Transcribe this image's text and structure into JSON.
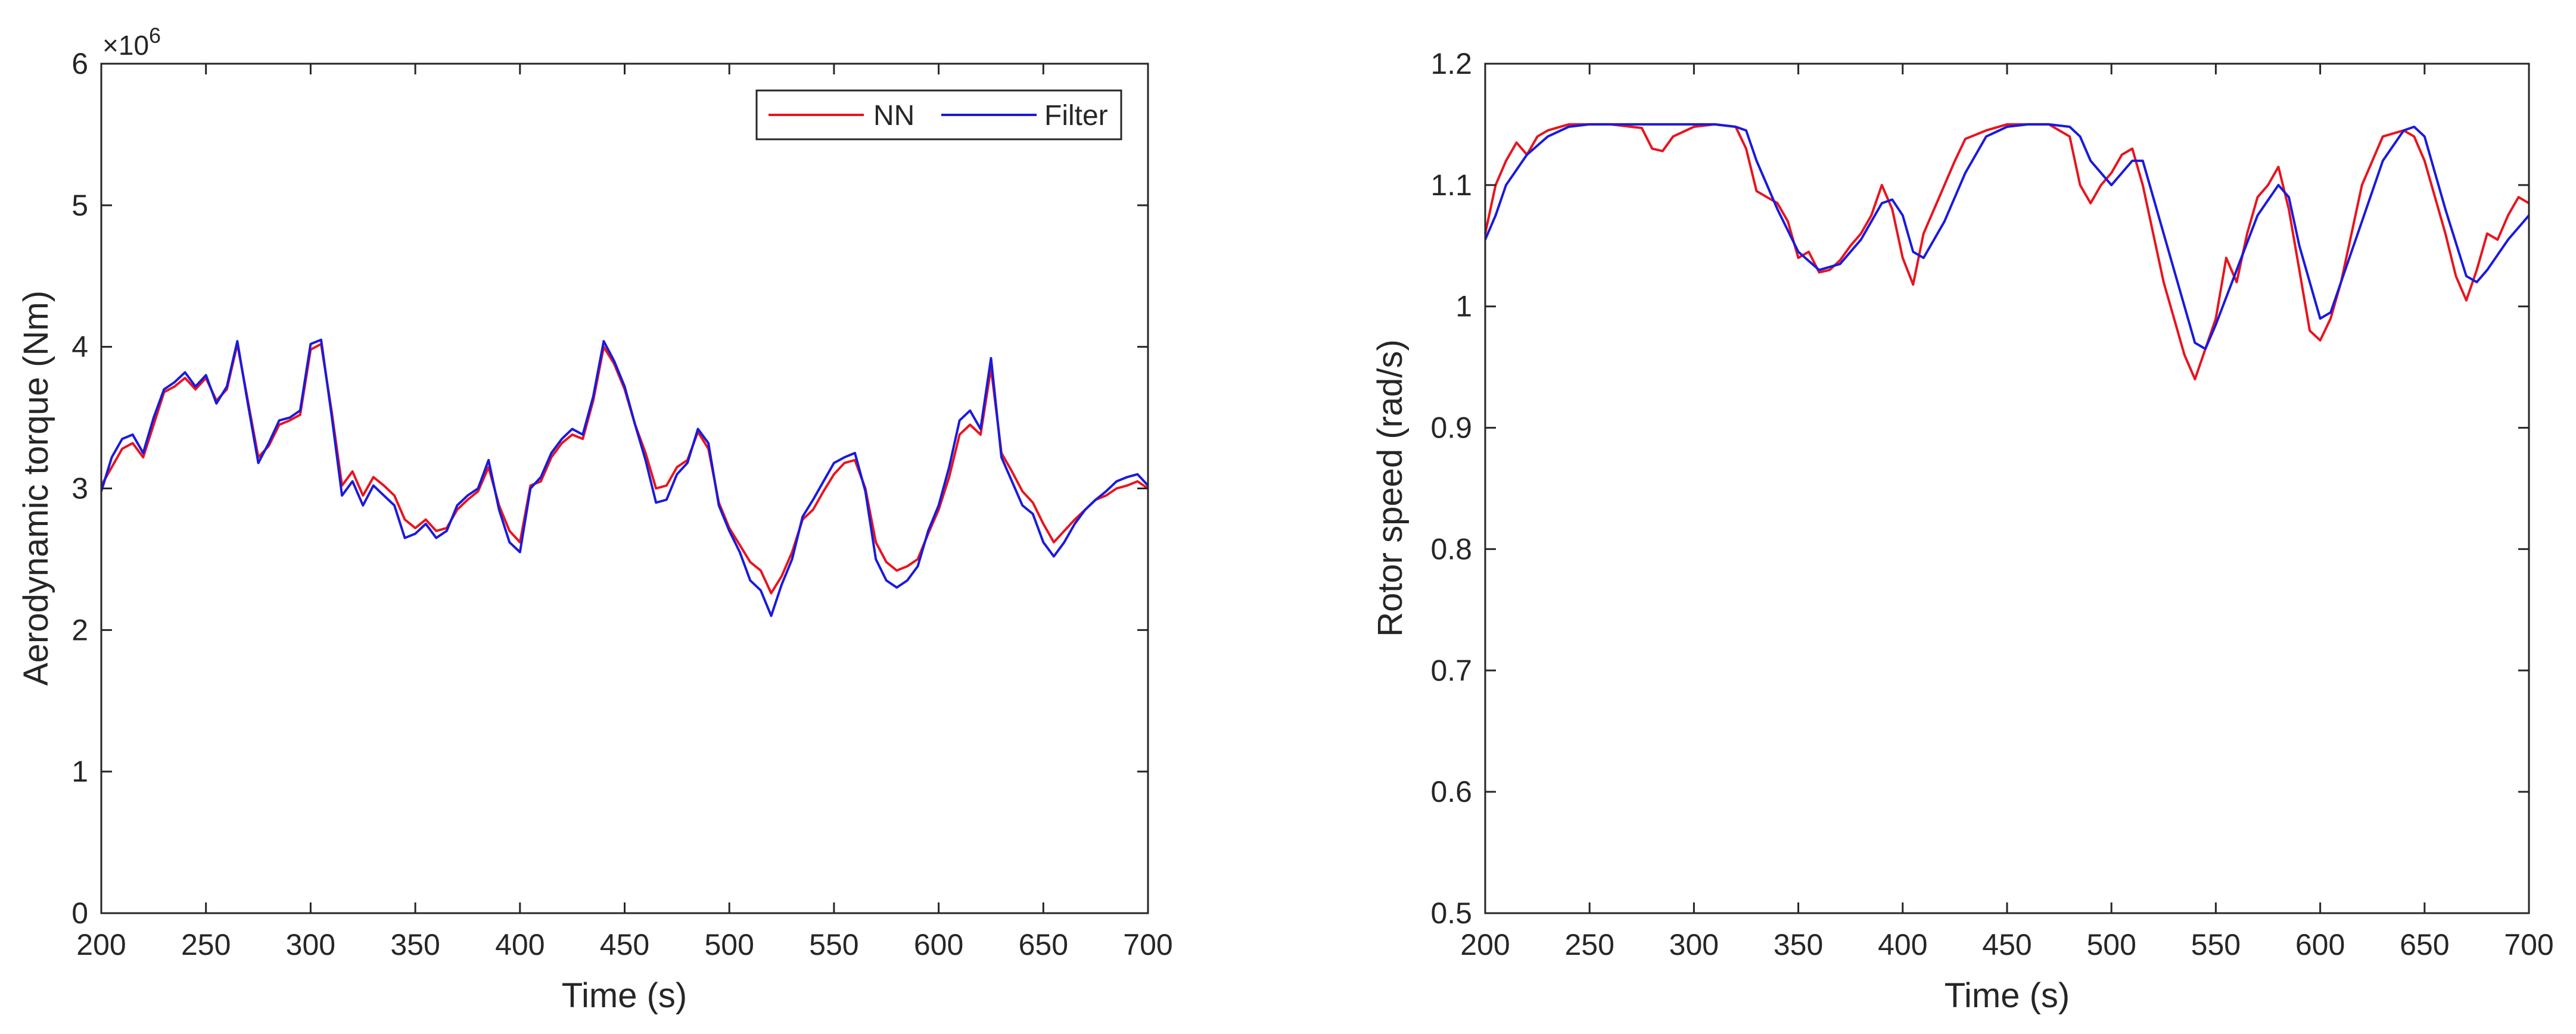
{
  "chart_data": [
    {
      "type": "line",
      "xlabel": "Time (s)",
      "ylabel": "Aerodynamic torque (Nm)",
      "xlim": [
        200,
        700
      ],
      "ylim": [
        0,
        6000000
      ],
      "xticks": [
        200,
        250,
        300,
        350,
        400,
        450,
        500,
        550,
        600,
        650,
        700
      ],
      "yticks": [
        0,
        1,
        2,
        3,
        4,
        5,
        6
      ],
      "ytick_labels": [
        "0",
        "1",
        "2",
        "3",
        "4",
        "5",
        "6"
      ],
      "yexponent": {
        "base": "×10",
        "power": "6"
      },
      "legend": {
        "position": "top-right",
        "entries": [
          "NN",
          "Filter"
        ]
      },
      "series": [
        {
          "name": "NN",
          "color": "#e8141e",
          "x": [
            200,
            205,
            210,
            215,
            220,
            225,
            230,
            235,
            240,
            245,
            250,
            255,
            260,
            265,
            270,
            275,
            280,
            285,
            290,
            295,
            300,
            305,
            310,
            315,
            320,
            325,
            330,
            335,
            340,
            345,
            350,
            355,
            360,
            365,
            370,
            375,
            380,
            385,
            390,
            395,
            400,
            405,
            410,
            415,
            420,
            425,
            430,
            435,
            440,
            445,
            450,
            455,
            460,
            465,
            470,
            475,
            480,
            485,
            490,
            495,
            500,
            505,
            510,
            515,
            520,
            525,
            530,
            535,
            540,
            545,
            550,
            555,
            560,
            565,
            570,
            575,
            580,
            585,
            590,
            595,
            600,
            605,
            610,
            615,
            620,
            625,
            630,
            635,
            640,
            645,
            650,
            655,
            660,
            665,
            670,
            675,
            680,
            685,
            690,
            695,
            700
          ],
          "y": [
            3.02,
            3.15,
            3.28,
            3.32,
            3.22,
            3.45,
            3.68,
            3.72,
            3.78,
            3.7,
            3.78,
            3.62,
            3.7,
            4.02,
            3.62,
            3.22,
            3.3,
            3.45,
            3.48,
            3.52,
            3.98,
            4.02,
            3.55,
            3.02,
            3.12,
            2.95,
            3.08,
            3.02,
            2.95,
            2.78,
            2.72,
            2.78,
            2.7,
            2.72,
            2.85,
            2.92,
            2.98,
            3.15,
            2.88,
            2.7,
            2.62,
            3.02,
            3.05,
            3.22,
            3.32,
            3.38,
            3.35,
            3.62,
            4.0,
            3.88,
            3.7,
            3.45,
            3.25,
            3.0,
            3.02,
            3.15,
            3.2,
            3.4,
            3.28,
            2.9,
            2.72,
            2.6,
            2.48,
            2.42,
            2.26,
            2.38,
            2.55,
            2.78,
            2.85,
            2.98,
            3.1,
            3.18,
            3.2,
            3.0,
            2.62,
            2.48,
            2.42,
            2.45,
            2.5,
            2.68,
            2.85,
            3.08,
            3.38,
            3.45,
            3.38,
            3.85,
            3.25,
            3.12,
            2.98,
            2.9,
            2.75,
            2.62,
            2.7,
            2.78,
            2.85,
            2.92,
            2.95,
            3.0,
            3.02,
            3.05,
            3.0
          ]
        },
        {
          "name": "Filter",
          "color": "#1a1adc",
          "x": [
            200,
            205,
            210,
            215,
            220,
            225,
            230,
            235,
            240,
            245,
            250,
            255,
            260,
            265,
            270,
            275,
            280,
            285,
            290,
            295,
            300,
            305,
            310,
            315,
            320,
            325,
            330,
            335,
            340,
            345,
            350,
            355,
            360,
            365,
            370,
            375,
            380,
            385,
            390,
            395,
            400,
            405,
            410,
            415,
            420,
            425,
            430,
            435,
            440,
            445,
            450,
            455,
            460,
            465,
            470,
            475,
            480,
            485,
            490,
            495,
            500,
            505,
            510,
            515,
            520,
            525,
            530,
            535,
            540,
            545,
            550,
            555,
            560,
            565,
            570,
            575,
            580,
            585,
            590,
            595,
            600,
            605,
            610,
            615,
            620,
            625,
            630,
            635,
            640,
            645,
            650,
            655,
            660,
            665,
            670,
            675,
            680,
            685,
            690,
            695,
            700
          ],
          "y": [
            2.98,
            3.22,
            3.35,
            3.38,
            3.25,
            3.5,
            3.7,
            3.75,
            3.82,
            3.72,
            3.8,
            3.6,
            3.72,
            4.04,
            3.6,
            3.18,
            3.32,
            3.48,
            3.5,
            3.55,
            4.02,
            4.05,
            3.52,
            2.95,
            3.05,
            2.88,
            3.02,
            2.95,
            2.88,
            2.65,
            2.68,
            2.75,
            2.65,
            2.7,
            2.88,
            2.95,
            3.0,
            3.2,
            2.85,
            2.62,
            2.55,
            3.0,
            3.08,
            3.25,
            3.35,
            3.42,
            3.38,
            3.65,
            4.04,
            3.9,
            3.72,
            3.45,
            3.2,
            2.9,
            2.92,
            3.1,
            3.18,
            3.42,
            3.32,
            2.88,
            2.7,
            2.55,
            2.35,
            2.28,
            2.1,
            2.32,
            2.5,
            2.8,
            2.92,
            3.05,
            3.18,
            3.22,
            3.25,
            2.98,
            2.5,
            2.35,
            2.3,
            2.35,
            2.45,
            2.7,
            2.88,
            3.15,
            3.48,
            3.55,
            3.42,
            3.92,
            3.22,
            3.05,
            2.88,
            2.82,
            2.62,
            2.52,
            2.62,
            2.75,
            2.85,
            2.92,
            2.98,
            3.05,
            3.08,
            3.1,
            3.02
          ]
        }
      ]
    },
    {
      "type": "line",
      "xlabel": "Time (s)",
      "ylabel": "Rotor speed (rad/s)",
      "xlim": [
        200,
        700
      ],
      "ylim": [
        0.5,
        1.2
      ],
      "xticks": [
        200,
        250,
        300,
        350,
        400,
        450,
        500,
        550,
        600,
        650,
        700
      ],
      "yticks": [
        0.5,
        0.6,
        0.7,
        0.8,
        0.9,
        1.0,
        1.1,
        1.2
      ],
      "ytick_labels": [
        "0.5",
        "0.6",
        "0.7",
        "0.8",
        "0.9",
        "1",
        "1.1",
        "1.2"
      ],
      "series": [
        {
          "name": "NN",
          "color": "#e8141e",
          "x": [
            200,
            205,
            210,
            215,
            220,
            225,
            230,
            240,
            250,
            260,
            270,
            275,
            280,
            285,
            290,
            300,
            310,
            320,
            325,
            330,
            335,
            340,
            345,
            350,
            355,
            360,
            365,
            370,
            375,
            380,
            385,
            390,
            395,
            400,
            405,
            410,
            415,
            420,
            425,
            430,
            440,
            450,
            460,
            470,
            480,
            485,
            490,
            495,
            500,
            505,
            510,
            515,
            520,
            525,
            530,
            535,
            540,
            545,
            550,
            555,
            560,
            565,
            570,
            575,
            580,
            585,
            590,
            595,
            600,
            605,
            610,
            615,
            620,
            630,
            640,
            645,
            650,
            655,
            660,
            665,
            670,
            675,
            680,
            685,
            690,
            695,
            700
          ],
          "y": [
            1.06,
            1.1,
            1.12,
            1.135,
            1.125,
            1.14,
            1.145,
            1.15,
            1.15,
            1.15,
            1.148,
            1.147,
            1.13,
            1.128,
            1.14,
            1.148,
            1.15,
            1.148,
            1.13,
            1.095,
            1.09,
            1.085,
            1.07,
            1.04,
            1.045,
            1.028,
            1.03,
            1.038,
            1.05,
            1.06,
            1.075,
            1.1,
            1.08,
            1.04,
            1.018,
            1.06,
            1.08,
            1.1,
            1.12,
            1.138,
            1.145,
            1.15,
            1.15,
            1.15,
            1.14,
            1.1,
            1.085,
            1.1,
            1.11,
            1.125,
            1.13,
            1.1,
            1.06,
            1.02,
            0.99,
            0.96,
            0.94,
            0.965,
            0.99,
            1.04,
            1.02,
            1.06,
            1.09,
            1.1,
            1.115,
            1.08,
            1.03,
            0.98,
            0.972,
            0.99,
            1.02,
            1.06,
            1.1,
            1.14,
            1.145,
            1.14,
            1.12,
            1.09,
            1.06,
            1.025,
            1.005,
            1.03,
            1.06,
            1.055,
            1.075,
            1.09,
            1.085
          ]
        },
        {
          "name": "Filter",
          "color": "#1a1adc",
          "x": [
            200,
            205,
            210,
            220,
            230,
            240,
            250,
            260,
            270,
            280,
            290,
            300,
            310,
            320,
            325,
            330,
            340,
            350,
            360,
            370,
            380,
            390,
            395,
            400,
            405,
            410,
            420,
            430,
            440,
            450,
            460,
            470,
            480,
            485,
            490,
            500,
            505,
            510,
            515,
            520,
            530,
            540,
            545,
            550,
            560,
            570,
            580,
            585,
            590,
            600,
            605,
            610,
            620,
            630,
            640,
            645,
            650,
            660,
            670,
            675,
            680,
            690,
            700
          ],
          "y": [
            1.055,
            1.075,
            1.1,
            1.125,
            1.14,
            1.148,
            1.15,
            1.15,
            1.15,
            1.15,
            1.15,
            1.15,
            1.15,
            1.148,
            1.145,
            1.12,
            1.08,
            1.045,
            1.03,
            1.035,
            1.055,
            1.085,
            1.088,
            1.075,
            1.045,
            1.04,
            1.07,
            1.11,
            1.14,
            1.148,
            1.15,
            1.15,
            1.148,
            1.14,
            1.12,
            1.1,
            1.11,
            1.12,
            1.12,
            1.09,
            1.03,
            0.97,
            0.965,
            0.985,
            1.03,
            1.075,
            1.1,
            1.09,
            1.05,
            0.99,
            0.995,
            1.02,
            1.07,
            1.12,
            1.145,
            1.148,
            1.14,
            1.08,
            1.025,
            1.02,
            1.03,
            1.055,
            1.075
          ]
        }
      ]
    }
  ]
}
